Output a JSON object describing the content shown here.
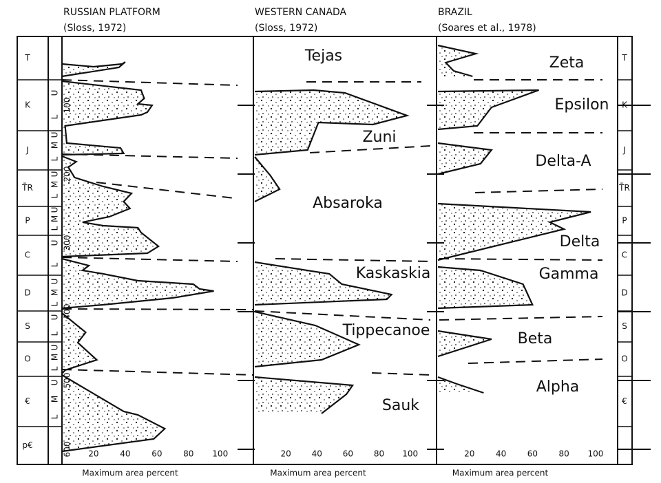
{
  "chart_data": [
    {
      "type": "area",
      "title": "RUSSIAN PLATFORM",
      "subtitle": "(Sloss, 1972)",
      "xlabel": "Maximum area percent",
      "xlim": [
        0,
        121
      ],
      "xticks": [
        20,
        40,
        60,
        80,
        100
      ],
      "ylim": [
        0,
        622
      ],
      "yticks": [
        100,
        200,
        300,
        400,
        500,
        600
      ],
      "series": [
        {
          "y": [
            40,
            44,
            40,
            37,
            45,
            58
          ],
          "values": [
            0,
            20,
            38,
            40,
            36,
            0
          ]
        },
        {
          "y": [
            65,
            78,
            90,
            98,
            100,
            110,
            114,
            130,
            155,
            162,
            170,
            172
          ],
          "values": [
            0,
            50,
            52,
            48,
            57,
            54,
            50,
            2,
            3,
            37,
            39,
            0
          ]
        },
        {
          "y": [
            174,
            182,
            190,
            205,
            218,
            228,
            240,
            250,
            262,
            270,
            275,
            278,
            285,
            305,
            315,
            320
          ],
          "values": [
            0,
            9,
            4,
            8,
            26,
            44,
            39,
            43,
            30,
            13,
            26,
            48,
            50,
            61,
            54,
            0
          ]
        },
        {
          "y": [
            323,
            333,
            340,
            345,
            355,
            360,
            367,
            370,
            380,
            390,
            395
          ],
          "values": [
            0,
            17,
            13,
            26,
            48,
            83,
            87,
            96,
            70,
            26,
            0
          ]
        },
        {
          "y": [
            402,
            430,
            445,
            470,
            485,
            490
          ],
          "values": [
            0,
            15,
            10,
            22,
            2,
            0
          ]
        },
        {
          "y": [
            492,
            545,
            550,
            570,
            585,
            603
          ],
          "values": [
            0,
            39,
            48,
            65,
            58,
            0
          ]
        }
      ]
    },
    {
      "type": "area",
      "title": "WESTERN CANADA",
      "subtitle": "(Sloss, 1972)",
      "xlabel": "Maximum area percent",
      "xlim": [
        0,
        117
      ],
      "xticks": [
        20,
        40,
        60,
        80,
        100
      ],
      "ylim": [
        0,
        622
      ],
      "yticks": [
        100,
        200,
        300,
        400,
        500,
        600
      ],
      "series": [
        {
          "name": "Tejas",
          "y": [],
          "values": []
        },
        {
          "name": "Zuni",
          "y": [
            80,
            78,
            82,
            115,
            128,
            125,
            165,
            172
          ],
          "values": [
            0,
            38,
            58,
            98,
            76,
            41,
            34,
            0
          ]
        },
        {
          "name": "Absaroka",
          "y": [
            175,
            202,
            222,
            240
          ],
          "values": [
            0,
            10,
            16,
            0
          ]
        },
        {
          "name": "Kaskaskia",
          "y": [
            328,
            345,
            360,
            375,
            382,
            390
          ],
          "values": [
            0,
            48,
            56,
            88,
            85,
            0
          ]
        },
        {
          "name": "Tippecanoe",
          "y": [
            400,
            420,
            448,
            470,
            480
          ],
          "values": [
            0,
            39,
            67,
            43,
            0
          ]
        },
        {
          "name": "Sauk",
          "y": [
            495,
            507,
            520,
            548
          ],
          "values": [
            0,
            63,
            59,
            43
          ]
        }
      ]
    },
    {
      "type": "area",
      "title": "BRAZIL",
      "subtitle": "(Soares et al., 1978)",
      "xlabel": "Maximum area percent",
      "xlim": [
        0,
        114
      ],
      "xticks": [
        20,
        40,
        60,
        80,
        100
      ],
      "ylim": [
        0,
        622
      ],
      "yticks": [
        100,
        200,
        300,
        400,
        500,
        600
      ],
      "series": [
        {
          "name": "Zeta",
          "y": [
            13,
            25,
            38,
            50,
            58
          ],
          "values": [
            0,
            24,
            5,
            10,
            22
          ]
        },
        {
          "name": "Epsilon",
          "y": [
            80,
            78,
            103,
            130,
            135
          ],
          "values": [
            0,
            64,
            34,
            25,
            0
          ]
        },
        {
          "name": "Delta-A",
          "y": [
            155,
            165,
            185,
            200
          ],
          "values": [
            0,
            34,
            27,
            0
          ]
        },
        {
          "name": "Delta",
          "y": [
            243,
            255,
            270,
            280,
            325
          ],
          "values": [
            0,
            97,
            71,
            80,
            0
          ]
        },
        {
          "name": "Gamma",
          "y": [
            335,
            340,
            360,
            390,
            395
          ],
          "values": [
            0,
            27,
            54,
            60,
            0
          ]
        },
        {
          "name": "Beta",
          "y": [
            428,
            440,
            465
          ],
          "values": [
            0,
            34,
            0
          ]
        },
        {
          "name": "Alpha",
          "y": [
            495,
            505,
            518
          ],
          "values": [
            0,
            12,
            29
          ]
        }
      ]
    }
  ],
  "strat_column": {
    "periods": [
      {
        "label": "T",
        "top": 0,
        "base": 63
      },
      {
        "label": "K",
        "top": 63,
        "base": 137
      },
      {
        "label": "J",
        "top": 137,
        "base": 194
      },
      {
        "label": "T̄R",
        "top": 194,
        "base": 247
      },
      {
        "label": "P",
        "top": 247,
        "base": 289
      },
      {
        "label": "C",
        "top": 289,
        "base": 347
      },
      {
        "label": "D",
        "top": 347,
        "base": 399
      },
      {
        "label": "S",
        "top": 399,
        "base": 444
      },
      {
        "label": "O",
        "top": 444,
        "base": 494
      },
      {
        "label": "€",
        "top": 494,
        "base": 567
      },
      {
        "label": "p€",
        "top": 567,
        "base": 622
      }
    ],
    "subdivisions": [
      {
        "label": "U",
        "age": 82
      },
      {
        "label": "L",
        "age": 117
      },
      {
        "label": "U",
        "age": 143
      },
      {
        "label": "M",
        "age": 158
      },
      {
        "label": "L",
        "age": 178
      },
      {
        "label": "U",
        "age": 200
      },
      {
        "label": "M",
        "age": 215
      },
      {
        "label": "L",
        "age": 232
      },
      {
        "label": "U",
        "age": 252
      },
      {
        "label": "M",
        "age": 265
      },
      {
        "label": "L",
        "age": 279
      },
      {
        "label": "U",
        "age": 300
      },
      {
        "label": "L",
        "age": 332
      },
      {
        "label": "U",
        "age": 356
      },
      {
        "label": "M",
        "age": 372
      },
      {
        "label": "L",
        "age": 389
      },
      {
        "label": "U",
        "age": 408
      },
      {
        "label": "L",
        "age": 432
      },
      {
        "label": "U",
        "age": 452
      },
      {
        "label": "M",
        "age": 466
      },
      {
        "label": "L",
        "age": 483
      },
      {
        "label": "U",
        "age": 503
      },
      {
        "label": "M",
        "age": 527
      },
      {
        "label": "L",
        "age": 553
      }
    ]
  }
}
